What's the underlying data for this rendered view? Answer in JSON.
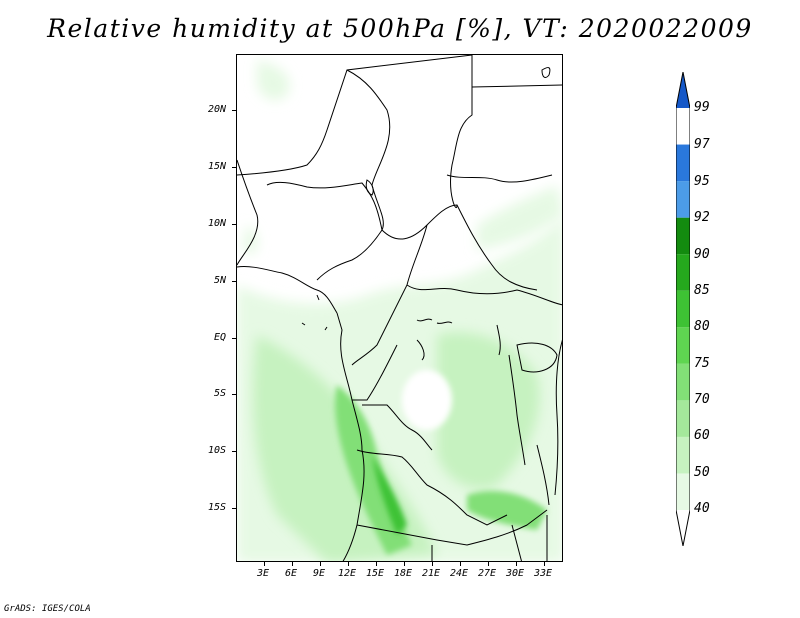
{
  "title": "Relative humidity at 500hPa [%], VT: 2020022009",
  "footer": "GrADS: IGES/COLA",
  "lat_labels": [
    "20N",
    "15N",
    "10N",
    "5N",
    "EQ",
    "5S",
    "10S",
    "15S"
  ],
  "lon_labels": [
    "3E",
    "6E",
    "9E",
    "12E",
    "15E",
    "18E",
    "21E",
    "24E",
    "27E",
    "30E",
    "33E"
  ],
  "colorbar": {
    "labels": [
      "40",
      "50",
      "60",
      "70",
      "75",
      "80",
      "85",
      "90",
      "92",
      "95",
      "97",
      "99"
    ],
    "colors": [
      "#ffffff",
      "#e6f9e4",
      "#c6f2c0",
      "#a4e89b",
      "#82df77",
      "#5fd551",
      "#3ec234",
      "#25a81d",
      "#138b0f",
      "#4c9ce8",
      "#2a78dc",
      "#1558c8"
    ]
  }
}
